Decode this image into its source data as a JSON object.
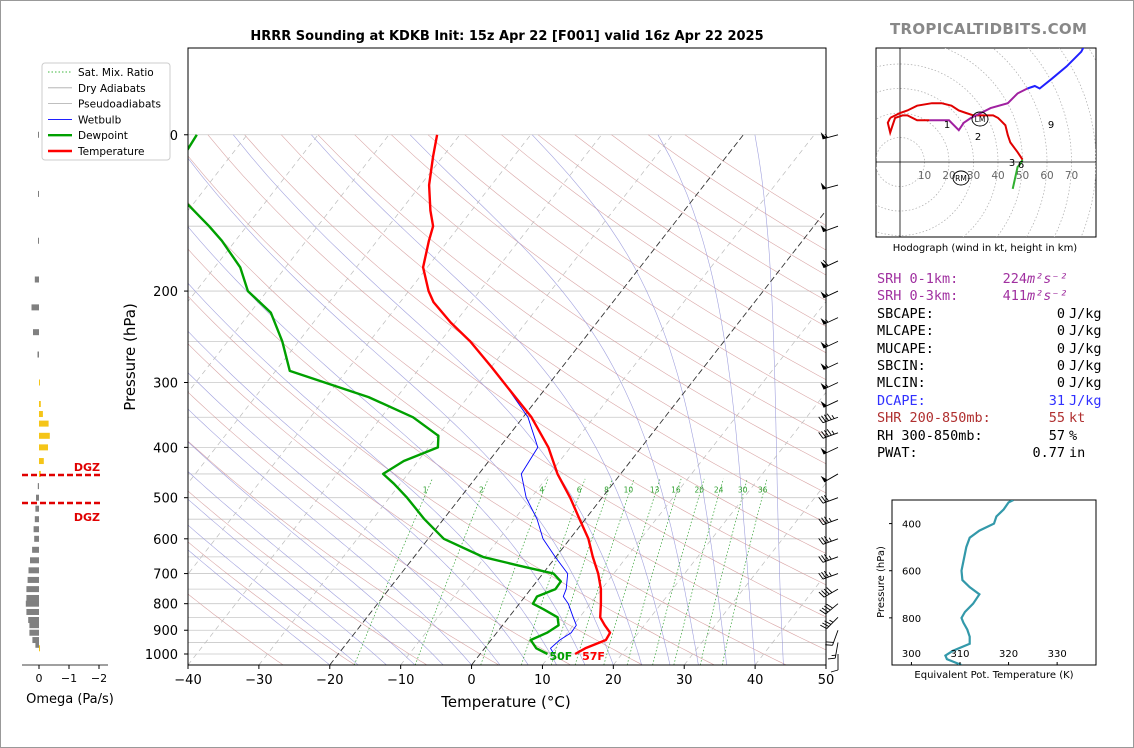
{
  "title": "HRRR Sounding at KDKB Init: 15z Apr 22 [F001] valid 16z Apr 22 2025",
  "brand": "TROPICALTIDBITS.COM",
  "colors": {
    "temp": "#ff0000",
    "dew": "#00a000",
    "wetbulb": "#0000ff",
    "srh": "#a030a0",
    "dcape": "#3030ff",
    "shear": "#b03030",
    "omega_up": "#f5c518",
    "omega_down": "#808080",
    "theta_e": "#3399aa"
  },
  "chart_data": [
    {
      "type": "skewt",
      "xlabel": "Temperature (°C)",
      "ylabel": "Pressure (hPa)",
      "xlim": [
        -40,
        50
      ],
      "ylim": [
        1050,
        100
      ],
      "x_ticks": [
        "−40",
        "−30",
        "−20",
        "−10",
        "0",
        "10",
        "20",
        "30",
        "40",
        "50"
      ],
      "y_ticks": [
        "100",
        "200",
        "300",
        "400",
        "500",
        "600",
        "700",
        "800",
        "900",
        "1000"
      ],
      "legend": [
        "Sat. Mix. Ratio",
        "Dry Adiabats",
        "Pseudoadiabats",
        "Wetbulb",
        "Dewpoint",
        "Temperature"
      ],
      "mixing_ratio_labels": [
        "1",
        "2",
        "4",
        "6",
        "8",
        "10",
        "13",
        "16",
        "20",
        "24",
        "30",
        "36"
      ],
      "surface_labels": {
        "dew": "50F",
        "temp": "57F"
      },
      "series": [
        {
          "name": "Temperature",
          "points": [
            [
              1000,
              13.4
            ],
            [
              975,
              14.2
            ],
            [
              940,
              16.2
            ],
            [
              910,
              16.0
            ],
            [
              880,
              14.4
            ],
            [
              850,
              12.9
            ],
            [
              800,
              11.5
            ],
            [
              750,
              9.9
            ],
            [
              700,
              7.8
            ],
            [
              650,
              5.2
            ],
            [
              600,
              2.6
            ],
            [
              550,
              -0.8
            ],
            [
              500,
              -4.5
            ],
            [
              450,
              -8.9
            ],
            [
              400,
              -13.1
            ],
            [
              350,
              -18.8
            ],
            [
              310,
              -24.9
            ],
            [
              280,
              -30.0
            ],
            [
              250,
              -35.8
            ],
            [
              230,
              -40.6
            ],
            [
              210,
              -45.3
            ],
            [
              200,
              -47.2
            ],
            [
              180,
              -50.6
            ],
            [
              160,
              -52.7
            ],
            [
              150,
              -53.7
            ],
            [
              140,
              -55.8
            ],
            [
              125,
              -58.8
            ],
            [
              110,
              -61.4
            ],
            [
              100,
              -63.2
            ]
          ]
        },
        {
          "name": "Dewpoint",
          "points": [
            [
              1000,
              9.5
            ],
            [
              975,
              7.3
            ],
            [
              940,
              5.6
            ],
            [
              910,
              7.1
            ],
            [
              880,
              7.9
            ],
            [
              850,
              6.9
            ],
            [
              820,
              4.0
            ],
            [
              800,
              1.9
            ],
            [
              775,
              1.7
            ],
            [
              750,
              3.5
            ],
            [
              725,
              3.4
            ],
            [
              700,
              1.5
            ],
            [
              675,
              -4.4
            ],
            [
              650,
              -10.3
            ],
            [
              600,
              -17.8
            ],
            [
              550,
              -22.7
            ],
            [
              500,
              -27.5
            ],
            [
              470,
              -30.9
            ],
            [
              450,
              -33.5
            ],
            [
              425,
              -32.0
            ],
            [
              400,
              -28.7
            ],
            [
              380,
              -29.9
            ],
            [
              350,
              -35.5
            ],
            [
              320,
              -44.0
            ],
            [
              285,
              -58.0
            ],
            [
              250,
              -62.3
            ],
            [
              220,
              -67.1
            ],
            [
              200,
              -72.7
            ],
            [
              180,
              -76.4
            ],
            [
              160,
              -81.9
            ],
            [
              150,
              -85.3
            ],
            [
              130,
              -93.3
            ],
            [
              115,
              -96.4
            ],
            [
              100,
              -97.1
            ]
          ]
        },
        {
          "name": "Wetbulb",
          "points": [
            [
              1000,
              10.4
            ],
            [
              975,
              9.3
            ],
            [
              940,
              9.7
            ],
            [
              910,
              10.5
            ],
            [
              880,
              10.4
            ],
            [
              850,
              9.1
            ],
            [
              800,
              6.9
            ],
            [
              775,
              5.4
            ],
            [
              750,
              5.0
            ],
            [
              700,
              3.5
            ],
            [
              650,
              -0.1
            ],
            [
              600,
              -3.8
            ],
            [
              550,
              -6.8
            ],
            [
              500,
              -10.7
            ],
            [
              450,
              -14.0
            ],
            [
              400,
              -14.6
            ],
            [
              350,
              -19.3
            ],
            [
              310,
              -25.0
            ]
          ]
        }
      ]
    },
    {
      "type": "bar",
      "xlabel": "Omega (Pa/s)",
      "x_ticks": [
        "0",
        "−1",
        "−2"
      ],
      "markers": [
        "DGZ",
        "DGZ"
      ],
      "series": [
        {
          "name": "Omega",
          "points": [
            [
              100,
              0.01
            ],
            [
              130,
              0.02
            ],
            [
              160,
              0.03
            ],
            [
              190,
              0.14
            ],
            [
              215,
              0.25
            ],
            [
              240,
              0.2
            ],
            [
              265,
              0.05
            ],
            [
              300,
              -0.02
            ],
            [
              330,
              -0.06
            ],
            [
              345,
              -0.13
            ],
            [
              360,
              -0.32
            ],
            [
              380,
              -0.36
            ],
            [
              400,
              -0.3
            ],
            [
              425,
              -0.16
            ],
            [
              450,
              -0.06
            ],
            [
              475,
              0.04
            ],
            [
              500,
              0.1
            ],
            [
              525,
              0.12
            ],
            [
              550,
              0.14
            ],
            [
              575,
              0.18
            ],
            [
              600,
              0.16
            ],
            [
              630,
              0.23
            ],
            [
              660,
              0.3
            ],
            [
              690,
              0.35
            ],
            [
              720,
              0.38
            ],
            [
              750,
              0.42
            ],
            [
              780,
              0.42
            ],
            [
              800,
              0.44
            ],
            [
              830,
              0.42
            ],
            [
              860,
              0.36
            ],
            [
              880,
              0.32
            ],
            [
              910,
              0.32
            ],
            [
              940,
              0.22
            ],
            [
              960,
              0.12
            ],
            [
              975,
              -0.02
            ]
          ]
        }
      ]
    },
    {
      "type": "line",
      "title": "Hodograph (wind in kt, height in km)",
      "ring_labels": [
        "10",
        "20",
        "30",
        "40",
        "50",
        "60",
        "70"
      ],
      "height_labels": [
        "1",
        "2",
        "3",
        "6",
        "9"
      ],
      "motion_labels": [
        "LM",
        "RM"
      ],
      "series": [
        {
          "name": "Hodograph",
          "points": [
            [
              46,
              -11
            ],
            [
              48,
              -2
            ],
            [
              49,
              -1
            ],
            [
              50,
              1
            ],
            [
              48,
              4
            ],
            [
              45,
              8
            ],
            [
              44,
              11
            ],
            [
              43,
              15
            ],
            [
              41,
              17
            ],
            [
              40,
              18
            ],
            [
              38,
              19
            ],
            [
              36,
              19
            ],
            [
              34,
              19
            ],
            [
              32,
              19
            ],
            [
              30,
              19
            ],
            [
              27,
              20
            ],
            [
              24,
              21
            ],
            [
              21,
              23
            ],
            [
              17,
              24
            ],
            [
              13,
              24
            ],
            [
              7,
              23
            ],
            [
              3,
              21
            ],
            [
              0,
              20
            ],
            [
              -4,
              18
            ],
            [
              -5,
              16
            ],
            [
              -4,
              12
            ],
            [
              -4,
              12
            ],
            [
              -3,
              15
            ],
            [
              -2,
              18
            ],
            [
              1,
              19
            ],
            [
              3,
              19
            ],
            [
              7,
              17
            ],
            [
              12,
              17
            ],
            [
              20,
              17
            ],
            [
              24,
              13
            ],
            [
              26,
              16
            ],
            [
              29,
              18
            ],
            [
              33,
              20
            ],
            [
              37,
              22
            ],
            [
              44,
              24
            ],
            [
              48,
              28
            ],
            [
              52,
              30
            ],
            [
              55,
              31
            ],
            [
              57,
              30
            ],
            [
              62,
              34
            ],
            [
              68,
              39
            ],
            [
              74,
              45
            ],
            [
              77,
              51
            ],
            [
              76,
              53
            ],
            [
              75,
              54
            ]
          ]
        }
      ]
    },
    {
      "type": "line",
      "xlabel": "Equivalent Pot. Temperature (K)",
      "ylabel": "Pressure (hPa)",
      "x_ticks": [
        "300",
        "310",
        "320",
        "330"
      ],
      "y_ticks": [
        "400",
        "600",
        "800"
      ],
      "xlim": [
        296,
        338
      ],
      "ylim": [
        1000,
        300
      ],
      "series": [
        {
          "name": "Theta-e",
          "points": [
            [
              1000,
              310.3
            ],
            [
              975,
              307.3
            ],
            [
              960,
              307.0
            ],
            [
              940,
              308.5
            ],
            [
              910,
              312.0
            ],
            [
              880,
              312.0
            ],
            [
              850,
              311.5
            ],
            [
              820,
              310.7
            ],
            [
              800,
              310.3
            ],
            [
              775,
              311.0
            ],
            [
              740,
              312.7
            ],
            [
              700,
              314.0
            ],
            [
              670,
              312.0
            ],
            [
              640,
              310.5
            ],
            [
              600,
              310.3
            ],
            [
              550,
              310.8
            ],
            [
              500,
              311.3
            ],
            [
              460,
              312.0
            ],
            [
              430,
              314.0
            ],
            [
              400,
              317.0
            ],
            [
              370,
              317.5
            ],
            [
              340,
              319.0
            ],
            [
              310,
              320.0
            ],
            [
              300,
              321.0
            ]
          ]
        }
      ]
    }
  ],
  "stats": [
    {
      "label": "SRH 0-1km:",
      "value": "224",
      "unit": "m²s⁻²",
      "color": "srh"
    },
    {
      "label": "SRH 0-3km:",
      "value": "411",
      "unit": "m²s⁻²",
      "color": "srh"
    },
    {
      "label": "SBCAPE:",
      "value": "0",
      "unit": "J/kg",
      "color": ""
    },
    {
      "label": "MLCAPE:",
      "value": "0",
      "unit": "J/kg",
      "color": ""
    },
    {
      "label": "MUCAPE:",
      "value": "0",
      "unit": "J/kg",
      "color": ""
    },
    {
      "label": "SBCIN:",
      "value": "0",
      "unit": "J/kg",
      "color": ""
    },
    {
      "label": "MLCIN:",
      "value": "0",
      "unit": "J/kg",
      "color": ""
    },
    {
      "label": "DCAPE:",
      "value": "31",
      "unit": "J/kg",
      "color": "dcape"
    },
    {
      "label": "SHR 200-850mb:",
      "value": "55",
      "unit": "kt",
      "color": "shear"
    },
    {
      "label": "RH 300-850mb:",
      "value": "57",
      "unit": "%",
      "color": ""
    },
    {
      "label": "PWAT:",
      "value": "0.77",
      "unit": "in",
      "color": ""
    }
  ],
  "wind_barbs": [
    {
      "p": 100,
      "spd": 55,
      "dir": 255
    },
    {
      "p": 125,
      "spd": 50,
      "dir": 255
    },
    {
      "p": 150,
      "spd": 50,
      "dir": 250
    },
    {
      "p": 175,
      "spd": 60,
      "dir": 245
    },
    {
      "p": 200,
      "spd": 55,
      "dir": 245
    },
    {
      "p": 225,
      "spd": 55,
      "dir": 245
    },
    {
      "p": 250,
      "spd": 55,
      "dir": 245
    },
    {
      "p": 275,
      "spd": 55,
      "dir": 245
    },
    {
      "p": 300,
      "spd": 55,
      "dir": 245
    },
    {
      "p": 325,
      "spd": 50,
      "dir": 245
    },
    {
      "p": 350,
      "spd": 45,
      "dir": 250
    },
    {
      "p": 375,
      "spd": 45,
      "dir": 250
    },
    {
      "p": 400,
      "spd": 50,
      "dir": 245
    },
    {
      "p": 450,
      "spd": 50,
      "dir": 240
    },
    {
      "p": 500,
      "spd": 30,
      "dir": 250
    },
    {
      "p": 550,
      "spd": 35,
      "dir": 250
    },
    {
      "p": 600,
      "spd": 35,
      "dir": 250
    },
    {
      "p": 650,
      "spd": 35,
      "dir": 250
    },
    {
      "p": 700,
      "spd": 35,
      "dir": 250
    },
    {
      "p": 750,
      "spd": 40,
      "dir": 240
    },
    {
      "p": 800,
      "spd": 40,
      "dir": 230
    },
    {
      "p": 850,
      "spd": 35,
      "dir": 225
    },
    {
      "p": 900,
      "spd": 20,
      "dir": 200
    },
    {
      "p": 950,
      "spd": 15,
      "dir": 190
    },
    {
      "p": 1000,
      "spd": 10,
      "dir": 180
    }
  ]
}
